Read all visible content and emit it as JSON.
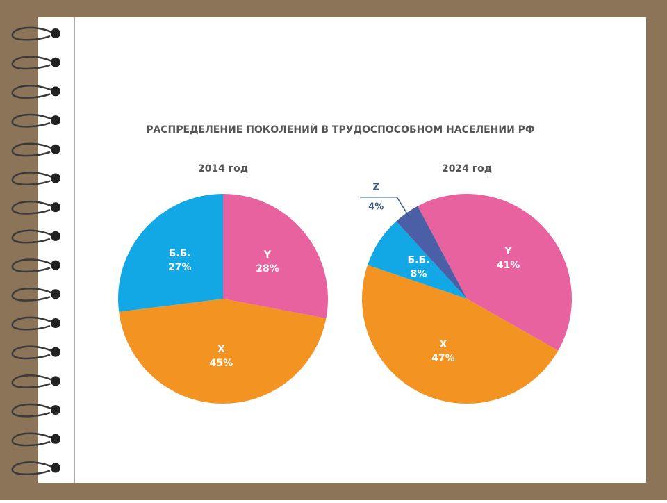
{
  "title": "РАСПРЕДЕЛЕНИЕ ПОКОЛЕНИЙ В ТРУДОСПОСОБНОМ НАСЕЛЕНИИ РФ",
  "chart_data": [
    {
      "type": "pie",
      "title": "2014 год",
      "categories": [
        "Y",
        "X",
        "Б.Б."
      ],
      "values": [
        28,
        45,
        27
      ],
      "value_labels": [
        "28%",
        "45%",
        "27%"
      ],
      "colors": [
        "#e8629f",
        "#f39322",
        "#12a8e6"
      ]
    },
    {
      "type": "pie",
      "title": "2024 год",
      "categories": [
        "Y",
        "X",
        "Б.Б.",
        "Z"
      ],
      "values": [
        41,
        47,
        8,
        4
      ],
      "value_labels": [
        "41%",
        "47%",
        "8%",
        "4%"
      ],
      "colors": [
        "#e8629f",
        "#f39322",
        "#12a8e6",
        "#4a5fa6"
      ]
    }
  ]
}
